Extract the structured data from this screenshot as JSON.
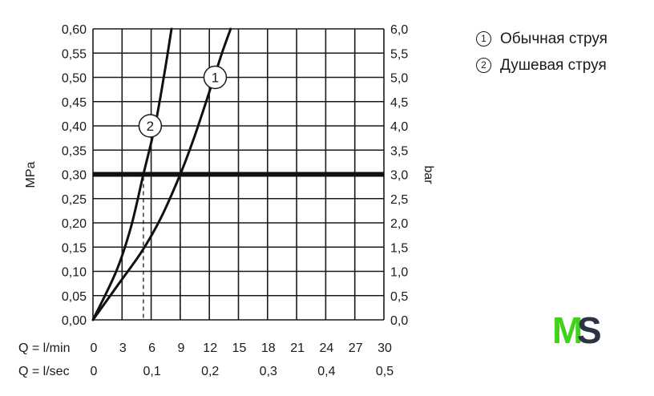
{
  "chart_data": {
    "type": "line",
    "y_left": {
      "label": "MPa",
      "ylim": [
        0,
        0.6
      ],
      "ticks": [
        "0,00",
        "0,05",
        "0,10",
        "0,15",
        "0,20",
        "0,25",
        "0,30",
        "0,35",
        "0,40",
        "0,45",
        "0,50",
        "0,55",
        "0,60"
      ]
    },
    "y_right": {
      "label": "bar",
      "ylim": [
        0,
        6.0
      ],
      "ticks": [
        "0,0",
        "0,5",
        "1,0",
        "1,5",
        "2,0",
        "2,5",
        "3,0",
        "3,5",
        "4,0",
        "4,5",
        "5,0",
        "5,5",
        "6,0"
      ]
    },
    "x_lmin": {
      "label": "Q = l/min",
      "xlim": [
        0,
        30
      ],
      "ticks": [
        "0",
        "3",
        "6",
        "9",
        "12",
        "15",
        "18",
        "21",
        "24",
        "27",
        "30"
      ]
    },
    "x_lsec": {
      "label": "Q = l/sec",
      "ticks": [
        {
          "v": 0,
          "t": "0"
        },
        {
          "v": 6,
          "t": "0,1"
        },
        {
          "v": 12,
          "t": "0,2"
        },
        {
          "v": 18,
          "t": "0,3"
        },
        {
          "v": 24,
          "t": "0,4"
        },
        {
          "v": 30,
          "t": "0,5"
        }
      ]
    },
    "grid": true,
    "reference_line": {
      "y": 0.3
    },
    "series": [
      {
        "marker": "1",
        "marker_at": [
          12.6,
          0.5
        ],
        "drop_at_x": 9,
        "x": [
          0,
          2.5,
          5,
          7,
          9,
          10.5,
          12,
          13.3,
          14.2
        ],
        "y": [
          0,
          0.07,
          0.14,
          0.21,
          0.3,
          0.38,
          0.47,
          0.55,
          0.6
        ]
      },
      {
        "marker": "2",
        "marker_at": [
          5.9,
          0.4
        ],
        "drop_at_x": 5.2,
        "x": [
          0,
          2.4,
          3.9,
          5.2,
          6.4,
          7.3,
          8.1
        ],
        "y": [
          0,
          0.1,
          0.19,
          0.3,
          0.4,
          0.5,
          0.6
        ]
      }
    ]
  },
  "legend": [
    {
      "num": "1",
      "label": "Обычная струя"
    },
    {
      "num": "2",
      "label": "Душевая струя"
    }
  ],
  "logo": {
    "m": "M",
    "s": "S",
    "m_color": "#3fd21b",
    "s_color": "#2b3442"
  }
}
